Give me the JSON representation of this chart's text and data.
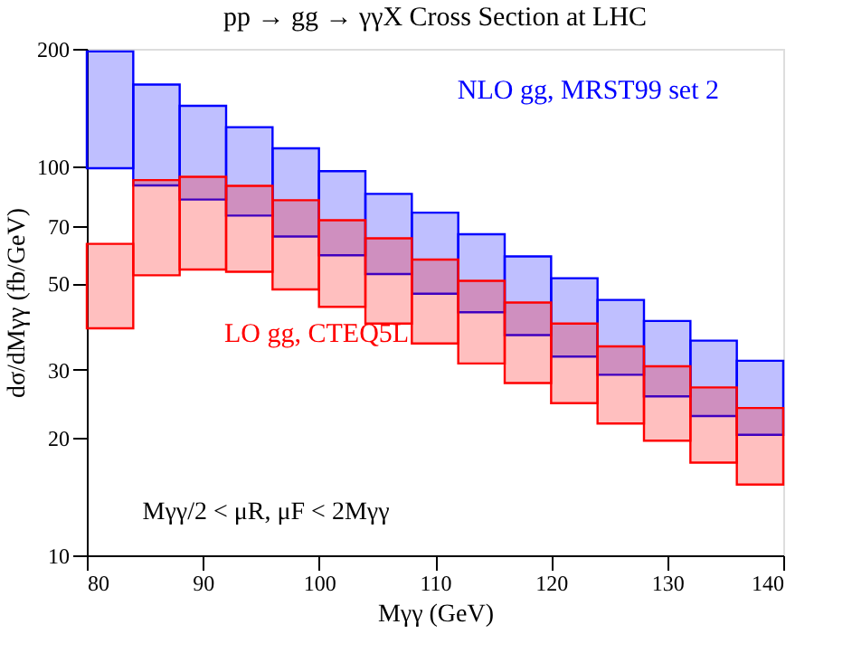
{
  "chart_data": {
    "type": "bar",
    "title": "pp → gg → γγX Cross Section at LHC",
    "xlabel": "Mγγ (GeV)",
    "ylabel": "dσ/dMγγ (fb/GeV)",
    "x": [
      82,
      86,
      90,
      94,
      98,
      102,
      106,
      110,
      114,
      118,
      122,
      126,
      130,
      134,
      138
    ],
    "series": [
      {
        "name": "NLO gg, MRST99 set 2",
        "color": "#0000ff",
        "base": [
          98.7,
          89.2,
          82.0,
          74.6,
          65.9,
          59.0,
          52.8,
          47.0,
          42.1,
          36.8,
          32.4,
          29.1,
          25.6,
          22.8,
          20.4
        ],
        "values": [
          98.3,
          72.7,
          60.8,
          51.2,
          45.1,
          38.0,
          32.0,
          28.9,
          24.7,
          21.8,
          19.1,
          16.2,
          14.4,
          12.8,
          11.2
        ]
      },
      {
        "name": "LO gg, CTEQ5L",
        "color": "#ff0000",
        "base": [
          38.3,
          52.4,
          54.2,
          53.5,
          48.2,
          43.5,
          39.4,
          35.0,
          31.1,
          27.7,
          24.6,
          21.8,
          19.7,
          17.3,
          15.2
        ],
        "values": [
          24.8,
          39.6,
          39.6,
          35.4,
          33.5,
          29.1,
          25.8,
          22.5,
          19.6,
          16.9,
          14.8,
          12.6,
          10.9,
          9.7,
          8.7
        ]
      }
    ],
    "annotations": [
      "Mγγ/2 < μR, μF < 2Mγγ"
    ],
    "log": "y",
    "xlim": [
      80,
      140
    ],
    "xticks": [
      80,
      90,
      100,
      110,
      120,
      130,
      140
    ],
    "ylim": [
      10,
      200
    ],
    "yticks": [
      10,
      20,
      30,
      50,
      70,
      100,
      200
    ],
    "grid": false
  }
}
